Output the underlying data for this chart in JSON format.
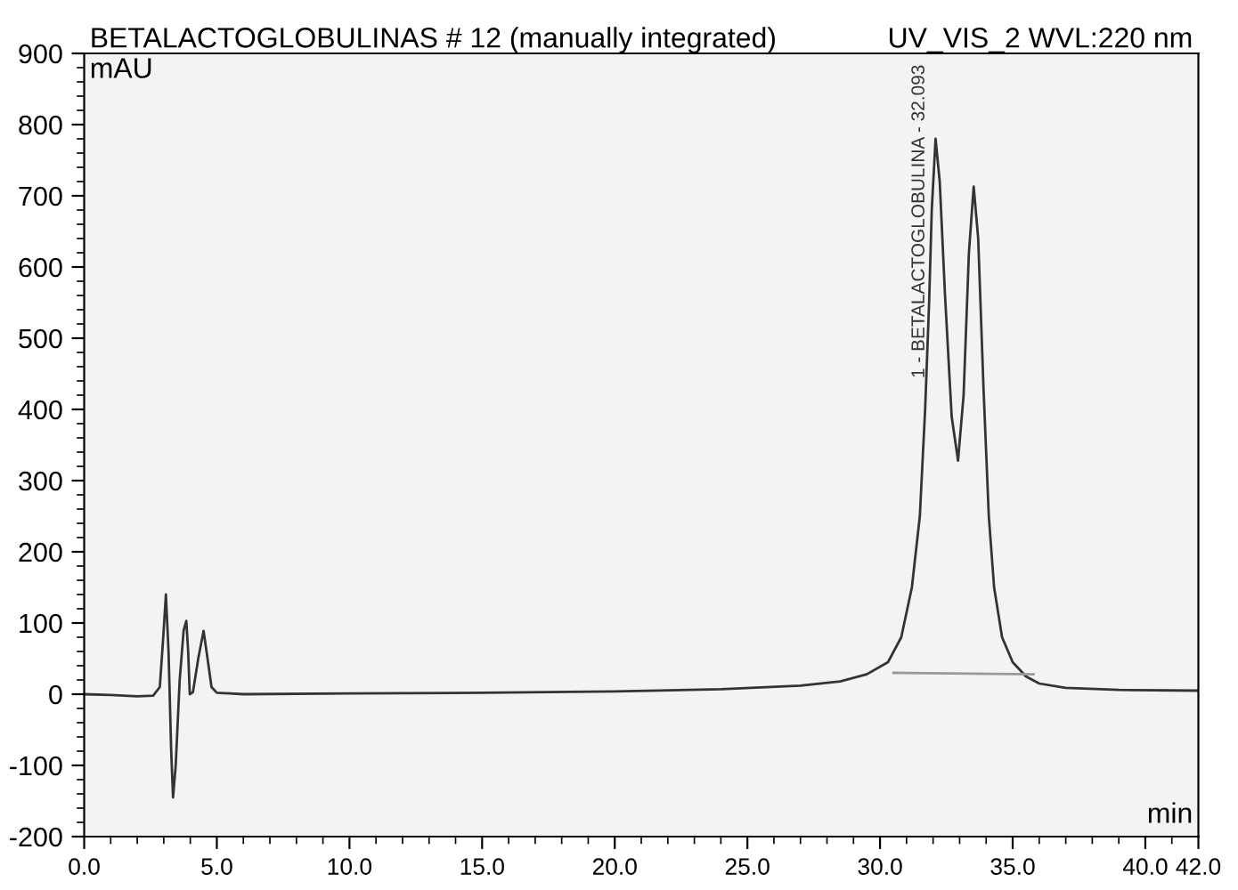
{
  "chart_data": {
    "type": "line",
    "title": "BETALACTOGLOBULINAS # 12 (manually integrated)",
    "subtitle": "UV_VIS_2 WVL:220 nm",
    "xlabel": "min",
    "ylabel": "mAU",
    "series": [
      {
        "color": "#333333",
        "x": [
          0,
          1.0,
          2.0,
          2.6,
          2.85,
          2.98,
          3.08,
          3.18,
          3.28,
          3.35,
          3.45,
          3.6,
          3.75,
          3.85,
          3.92,
          3.98,
          4.1,
          4.3,
          4.5,
          4.65,
          4.8,
          5.0,
          6.0,
          10.0,
          15.0,
          20.0,
          24.0,
          27.0,
          28.5,
          29.5,
          30.3,
          30.8,
          31.2,
          31.5,
          31.7,
          31.85,
          31.95,
          32.093,
          32.25,
          32.45,
          32.7,
          32.94,
          33.15,
          33.35,
          33.53,
          33.7,
          33.9,
          34.1,
          34.3,
          34.6,
          35.0,
          35.5,
          36.0,
          37.0,
          39.0,
          42.0
        ],
        "values": [
          0,
          -1,
          -3,
          -2,
          10,
          80,
          140,
          60,
          -80,
          -145,
          -100,
          20,
          90,
          103,
          60,
          0,
          3,
          50,
          89,
          50,
          10,
          2,
          0,
          1,
          2,
          4,
          7,
          12,
          18,
          28,
          45,
          80,
          150,
          250,
          400,
          550,
          680,
          780,
          720,
          560,
          390,
          328,
          420,
          620,
          713,
          640,
          430,
          250,
          150,
          80,
          45,
          25,
          15,
          9,
          6,
          5
        ]
      },
      {
        "color": "#999999",
        "x": [
          30.5,
          35.8
        ],
        "values": [
          30,
          28
        ]
      }
    ],
    "annotations": [
      {
        "text": "1 - BETALACTOGLOBULINA - 32.093",
        "x": 32.093,
        "y": 780
      }
    ],
    "xlim": [
      0,
      42
    ],
    "ylim": [
      -200,
      900
    ],
    "xticks": [
      {
        "value": 0,
        "label": "0.0"
      },
      {
        "value": 5,
        "label": "5.0"
      },
      {
        "value": 10,
        "label": "10.0"
      },
      {
        "value": 15,
        "label": "15.0"
      },
      {
        "value": 20,
        "label": "20.0"
      },
      {
        "value": 25,
        "label": "25.0"
      },
      {
        "value": 30,
        "label": "30.0"
      },
      {
        "value": 35,
        "label": "35.0"
      },
      {
        "value": 40,
        "label": "40.0"
      },
      {
        "value": 42,
        "label": "42.0"
      }
    ],
    "yticks": [
      -200,
      -100,
      0,
      100,
      200,
      300,
      400,
      500,
      600,
      700,
      800,
      900
    ],
    "grid": false,
    "legend": false,
    "marker": "none",
    "line_style": "solid"
  }
}
